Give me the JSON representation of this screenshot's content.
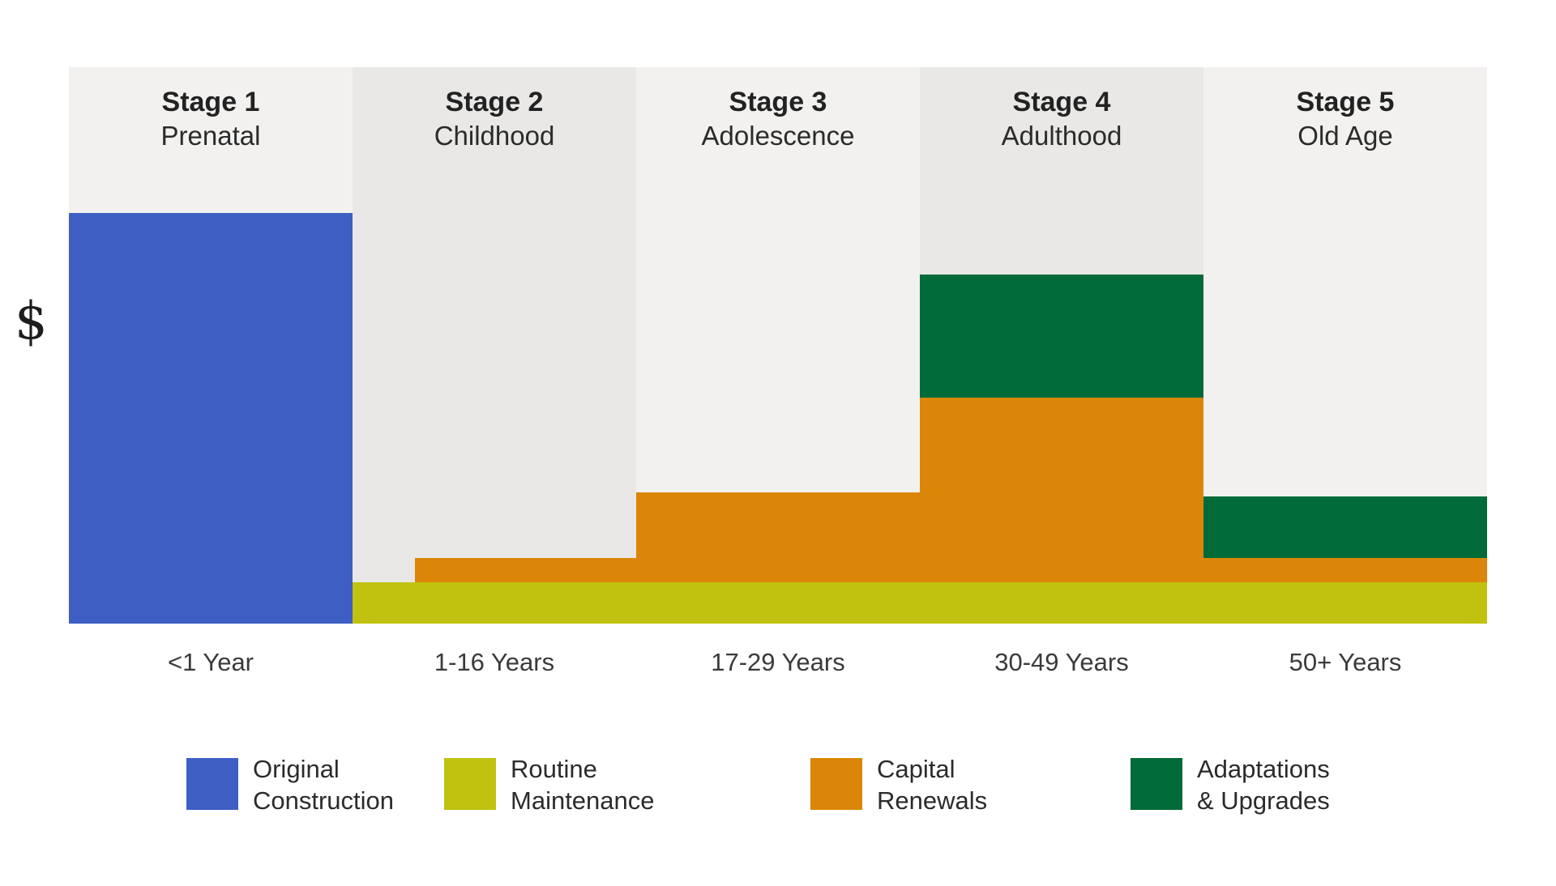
{
  "y_axis_label": "$",
  "stages": [
    {
      "stage": "Stage 1",
      "phase": "Prenatal",
      "age_range": "<1 Year"
    },
    {
      "stage": "Stage 2",
      "phase": "Childhood",
      "age_range": "1-16 Years"
    },
    {
      "stage": "Stage 3",
      "phase": "Adolescence",
      "age_range": "17-29 Years"
    },
    {
      "stage": "Stage 4",
      "phase": "Adulthood",
      "age_range": "30-49 Years"
    },
    {
      "stage": "Stage 5",
      "phase": "Old Age",
      "age_range": "50+ Years"
    }
  ],
  "legend": [
    {
      "label_line1": "Original",
      "label_line2": "Construction",
      "color": "#3E5EC4"
    },
    {
      "label_line1": "Routine",
      "label_line2": "Maintenance",
      "color": "#C0C20F"
    },
    {
      "label_line1": "Capital",
      "label_line2": "Renewals",
      "color": "#DB8609"
    },
    {
      "label_line1": "Adaptations",
      "label_line2": "& Upgrades",
      "color": "#006B39"
    }
  ],
  "colors": {
    "panel_light": "#F2F1EF",
    "panel_dark": "#E9E8E6",
    "background": "#FFFFFF",
    "text": "#2B2B2B"
  },
  "chart_data": {
    "type": "area",
    "subtype": "stacked-step-bands-by-life-stage",
    "title": "",
    "ylabel": "$",
    "y_units": "relative cost (axis shows only $, no tick values)",
    "ylim": [
      0,
      135
    ],
    "grid": false,
    "legend_position": "bottom",
    "categories": [
      "<1 Year",
      "1-16 Years",
      "17-29 Years",
      "30-49 Years",
      "50+ Years"
    ],
    "stage_phases": [
      "Prenatal",
      "Childhood",
      "Adolescence",
      "Adulthood",
      "Old Age"
    ],
    "series": [
      {
        "name": "Original Construction",
        "color": "#3E5EC4",
        "values": [
          100,
          0,
          0,
          0,
          0
        ]
      },
      {
        "name": "Routine Maintenance",
        "color": "#C0C20F",
        "values": [
          0,
          10,
          10,
          10,
          10
        ]
      },
      {
        "name": "Capital Renewals",
        "color": "#DB8609",
        "values": [
          0,
          6,
          22,
          45,
          6
        ],
        "start_fraction_by_stage": [
          0,
          0.22,
          0,
          0,
          0
        ],
        "note": "band begins partway through Stage 2"
      },
      {
        "name": "Adaptations & Upgrades",
        "color": "#006B39",
        "values": [
          0,
          0,
          0,
          30,
          15
        ]
      }
    ]
  }
}
